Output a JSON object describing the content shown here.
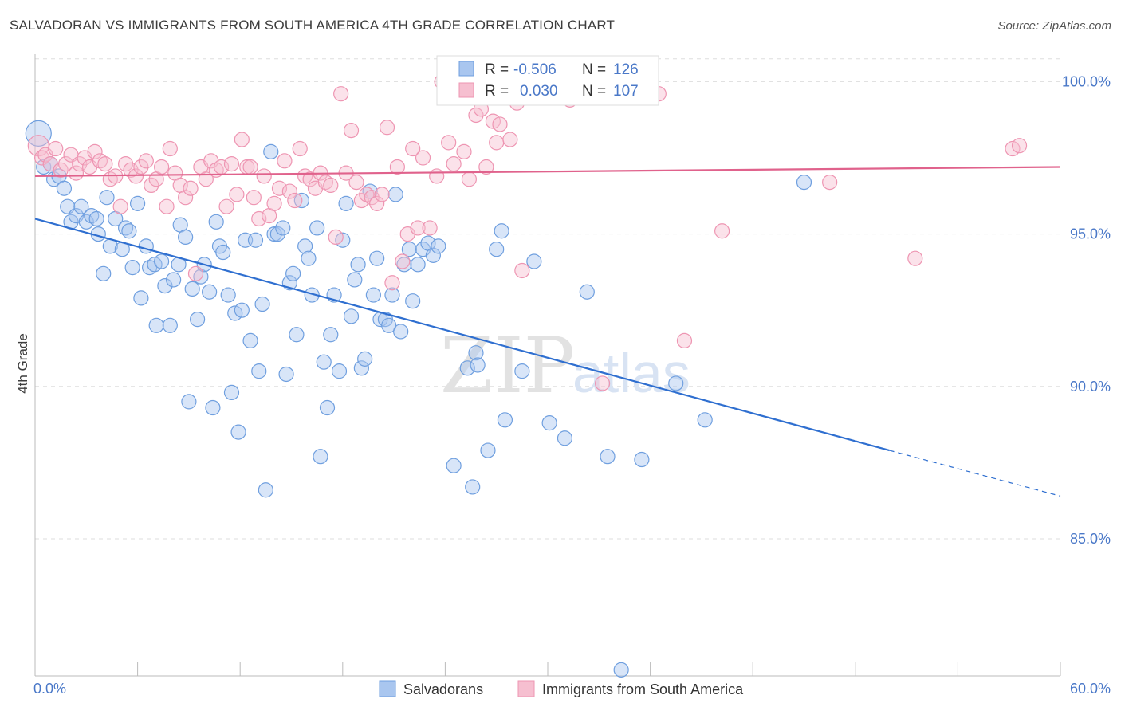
{
  "header": {
    "title": "SALVADORAN VS IMMIGRANTS FROM SOUTH AMERICA 4TH GRADE CORRELATION CHART",
    "source": "Source: ZipAtlas.com"
  },
  "watermark": {
    "zip": "ZIP",
    "atlas": "atlas"
  },
  "colors": {
    "blue_fill": "#a9c6ef",
    "blue_stroke": "#6f9fdf",
    "blue_line": "#2f6fd0",
    "pink_fill": "#f6bfd0",
    "pink_stroke": "#ee95b2",
    "pink_line": "#e0628c",
    "axis_label": "#4a78c8",
    "grid": "#dddddd"
  },
  "legend": {
    "rows": [
      {
        "r_label": "R =",
        "r_value": "-0.506",
        "n_label": "N =",
        "n_value": "126"
      },
      {
        "r_label": "R =",
        "r_value": "0.030",
        "n_label": "N =",
        "n_value": "107"
      }
    ]
  },
  "bottom_legend": [
    "Salvadorans",
    "Immigrants from South America"
  ],
  "chart_data": {
    "type": "scatter",
    "title": "SALVADORAN VS IMMIGRANTS FROM SOUTH AMERICA 4TH GRADE CORRELATION CHART",
    "xlabel": "",
    "ylabel": "4th Grade",
    "xlim": [
      0,
      60
    ],
    "ylim": [
      80.5,
      100.9
    ],
    "x_tick_labels": [
      "0.0%",
      "60.0%"
    ],
    "y_ticks": [
      85,
      90,
      95,
      100
    ],
    "y_tick_labels": [
      "85.0%",
      "90.0%",
      "95.0%",
      "100.0%"
    ],
    "grid": true,
    "legend_position": "top-center",
    "series": [
      {
        "name": "Salvadorans",
        "r": -0.506,
        "n": 126,
        "trend": {
          "x0": 0,
          "y0": 95.5,
          "x1": 50,
          "y1": 87.9,
          "dashed_to_x": 60,
          "dashed_to_y": 86.4
        },
        "points": [
          [
            0.2,
            98.3
          ],
          [
            0.5,
            97.2
          ],
          [
            0.9,
            97.3
          ],
          [
            1.1,
            96.8
          ],
          [
            1.4,
            96.9
          ],
          [
            1.7,
            96.5
          ],
          [
            1.9,
            95.9
          ],
          [
            2.1,
            95.4
          ],
          [
            2.4,
            95.6
          ],
          [
            2.7,
            95.9
          ],
          [
            3.0,
            95.4
          ],
          [
            3.3,
            95.6
          ],
          [
            3.6,
            95.5
          ],
          [
            3.7,
            95.0
          ],
          [
            4.0,
            93.7
          ],
          [
            4.2,
            96.2
          ],
          [
            4.4,
            94.6
          ],
          [
            4.7,
            95.5
          ],
          [
            5.1,
            94.5
          ],
          [
            5.3,
            95.2
          ],
          [
            5.5,
            95.1
          ],
          [
            5.7,
            93.9
          ],
          [
            6.0,
            96.0
          ],
          [
            6.2,
            92.9
          ],
          [
            6.5,
            94.6
          ],
          [
            6.7,
            93.9
          ],
          [
            7.0,
            94.0
          ],
          [
            7.1,
            92.0
          ],
          [
            7.4,
            94.1
          ],
          [
            7.6,
            93.3
          ],
          [
            7.9,
            92.0
          ],
          [
            8.1,
            93.5
          ],
          [
            8.4,
            94.0
          ],
          [
            8.5,
            95.3
          ],
          [
            8.8,
            94.9
          ],
          [
            9.0,
            89.5
          ],
          [
            9.2,
            93.2
          ],
          [
            9.5,
            92.2
          ],
          [
            9.7,
            93.6
          ],
          [
            9.9,
            94.0
          ],
          [
            10.2,
            93.1
          ],
          [
            10.4,
            89.3
          ],
          [
            10.6,
            95.4
          ],
          [
            10.8,
            94.6
          ],
          [
            11.0,
            94.4
          ],
          [
            11.3,
            93.0
          ],
          [
            11.5,
            89.8
          ],
          [
            11.7,
            92.4
          ],
          [
            11.9,
            88.5
          ],
          [
            12.1,
            92.5
          ],
          [
            12.3,
            94.8
          ],
          [
            12.6,
            91.5
          ],
          [
            12.9,
            94.8
          ],
          [
            13.1,
            90.5
          ],
          [
            13.3,
            92.7
          ],
          [
            13.5,
            86.6
          ],
          [
            13.8,
            97.7
          ],
          [
            14.0,
            95.0
          ],
          [
            14.2,
            95.0
          ],
          [
            14.5,
            95.2
          ],
          [
            14.7,
            90.4
          ],
          [
            14.9,
            93.4
          ],
          [
            15.1,
            93.7
          ],
          [
            15.3,
            91.7
          ],
          [
            15.6,
            96.1
          ],
          [
            15.8,
            94.6
          ],
          [
            16.0,
            94.2
          ],
          [
            16.2,
            93.0
          ],
          [
            16.5,
            95.2
          ],
          [
            16.7,
            87.7
          ],
          [
            16.9,
            90.8
          ],
          [
            17.1,
            89.3
          ],
          [
            17.3,
            91.7
          ],
          [
            17.5,
            93.0
          ],
          [
            17.8,
            90.5
          ],
          [
            18.0,
            94.8
          ],
          [
            18.2,
            96.0
          ],
          [
            18.5,
            92.3
          ],
          [
            18.7,
            93.5
          ],
          [
            18.9,
            94.0
          ],
          [
            19.1,
            90.6
          ],
          [
            19.3,
            90.9
          ],
          [
            19.6,
            96.4
          ],
          [
            19.8,
            93.0
          ],
          [
            20.0,
            94.2
          ],
          [
            20.2,
            92.2
          ],
          [
            20.5,
            92.2
          ],
          [
            20.7,
            92.0
          ],
          [
            20.9,
            93.0
          ],
          [
            21.1,
            96.3
          ],
          [
            21.4,
            91.8
          ],
          [
            21.6,
            94.0
          ],
          [
            21.9,
            94.5
          ],
          [
            22.1,
            92.8
          ],
          [
            22.4,
            94.0
          ],
          [
            22.7,
            94.5
          ],
          [
            23.0,
            94.7
          ],
          [
            23.3,
            94.3
          ],
          [
            23.6,
            94.6
          ],
          [
            24.5,
            87.4
          ],
          [
            25.3,
            90.6
          ],
          [
            25.6,
            86.7
          ],
          [
            25.8,
            91.1
          ],
          [
            25.9,
            90.7
          ],
          [
            26.5,
            87.9
          ],
          [
            27.0,
            94.5
          ],
          [
            27.3,
            95.1
          ],
          [
            27.5,
            88.9
          ],
          [
            28.5,
            90.5
          ],
          [
            29.2,
            94.1
          ],
          [
            30.1,
            88.8
          ],
          [
            31.0,
            88.3
          ],
          [
            32.3,
            93.1
          ],
          [
            33.5,
            87.7
          ],
          [
            34.3,
            80.7
          ],
          [
            35.5,
            87.6
          ],
          [
            37.5,
            90.1
          ],
          [
            39.2,
            88.9
          ],
          [
            45.0,
            96.7
          ]
        ]
      },
      {
        "name": "Immigrants from South America",
        "r": 0.03,
        "n": 107,
        "trend": {
          "x0": 0,
          "y0": 96.9,
          "x1": 60,
          "y1": 97.2
        },
        "points": [
          [
            0.2,
            97.9
          ],
          [
            0.4,
            97.5
          ],
          [
            0.6,
            97.6
          ],
          [
            0.9,
            97.3
          ],
          [
            1.2,
            97.8
          ],
          [
            1.5,
            97.1
          ],
          [
            1.8,
            97.3
          ],
          [
            2.1,
            97.6
          ],
          [
            2.4,
            97.0
          ],
          [
            2.6,
            97.3
          ],
          [
            2.9,
            97.5
          ],
          [
            3.2,
            97.2
          ],
          [
            3.5,
            97.7
          ],
          [
            3.8,
            97.4
          ],
          [
            4.1,
            97.3
          ],
          [
            4.4,
            96.8
          ],
          [
            4.7,
            96.9
          ],
          [
            5.0,
            95.9
          ],
          [
            5.3,
            97.3
          ],
          [
            5.6,
            97.1
          ],
          [
            5.9,
            96.9
          ],
          [
            6.2,
            97.2
          ],
          [
            6.5,
            97.4
          ],
          [
            6.8,
            96.6
          ],
          [
            7.1,
            96.8
          ],
          [
            7.4,
            97.2
          ],
          [
            7.7,
            95.9
          ],
          [
            7.9,
            97.8
          ],
          [
            8.2,
            97.0
          ],
          [
            8.5,
            96.6
          ],
          [
            8.8,
            96.2
          ],
          [
            9.1,
            96.5
          ],
          [
            9.4,
            93.7
          ],
          [
            9.7,
            97.2
          ],
          [
            10.0,
            96.8
          ],
          [
            10.3,
            97.4
          ],
          [
            10.6,
            97.1
          ],
          [
            10.9,
            97.2
          ],
          [
            11.2,
            95.9
          ],
          [
            11.5,
            97.3
          ],
          [
            11.8,
            96.3
          ],
          [
            12.1,
            98.1
          ],
          [
            12.4,
            97.2
          ],
          [
            12.6,
            97.2
          ],
          [
            12.8,
            96.2
          ],
          [
            13.1,
            95.5
          ],
          [
            13.4,
            96.9
          ],
          [
            13.7,
            95.6
          ],
          [
            14.0,
            96.0
          ],
          [
            14.3,
            96.5
          ],
          [
            14.6,
            97.4
          ],
          [
            14.9,
            96.4
          ],
          [
            15.2,
            96.1
          ],
          [
            15.5,
            97.8
          ],
          [
            15.8,
            96.9
          ],
          [
            16.1,
            96.8
          ],
          [
            16.4,
            96.5
          ],
          [
            16.7,
            97.0
          ],
          [
            17.0,
            96.7
          ],
          [
            17.3,
            96.6
          ],
          [
            17.6,
            94.9
          ],
          [
            17.9,
            99.6
          ],
          [
            18.2,
            97.0
          ],
          [
            18.5,
            98.4
          ],
          [
            18.8,
            96.7
          ],
          [
            19.1,
            96.1
          ],
          [
            19.4,
            96.3
          ],
          [
            19.7,
            96.2
          ],
          [
            20.0,
            96.0
          ],
          [
            20.3,
            96.3
          ],
          [
            20.6,
            98.5
          ],
          [
            20.9,
            93.4
          ],
          [
            21.2,
            97.2
          ],
          [
            21.5,
            94.1
          ],
          [
            21.8,
            95.0
          ],
          [
            22.1,
            97.8
          ],
          [
            22.4,
            95.2
          ],
          [
            22.7,
            97.5
          ],
          [
            23.1,
            95.2
          ],
          [
            23.5,
            96.9
          ],
          [
            23.8,
            100.0
          ],
          [
            24.2,
            98.0
          ],
          [
            24.5,
            97.3
          ],
          [
            24.8,
            99.8
          ],
          [
            25.1,
            97.7
          ],
          [
            25.4,
            96.8
          ],
          [
            25.8,
            98.9
          ],
          [
            26.1,
            99.1
          ],
          [
            26.4,
            97.2
          ],
          [
            26.8,
            98.7
          ],
          [
            27.0,
            98.0
          ],
          [
            27.2,
            98.6
          ],
          [
            27.4,
            100.0
          ],
          [
            27.8,
            98.1
          ],
          [
            28.2,
            99.3
          ],
          [
            28.5,
            93.8
          ],
          [
            31.3,
            99.4
          ],
          [
            33.2,
            90.1
          ],
          [
            34.2,
            99.9
          ],
          [
            35.5,
            100.0
          ],
          [
            36.5,
            99.6
          ],
          [
            38.0,
            91.5
          ],
          [
            40.2,
            95.1
          ],
          [
            46.5,
            96.7
          ],
          [
            51.5,
            94.2
          ],
          [
            57.2,
            97.8
          ],
          [
            57.6,
            97.9
          ]
        ]
      }
    ]
  }
}
